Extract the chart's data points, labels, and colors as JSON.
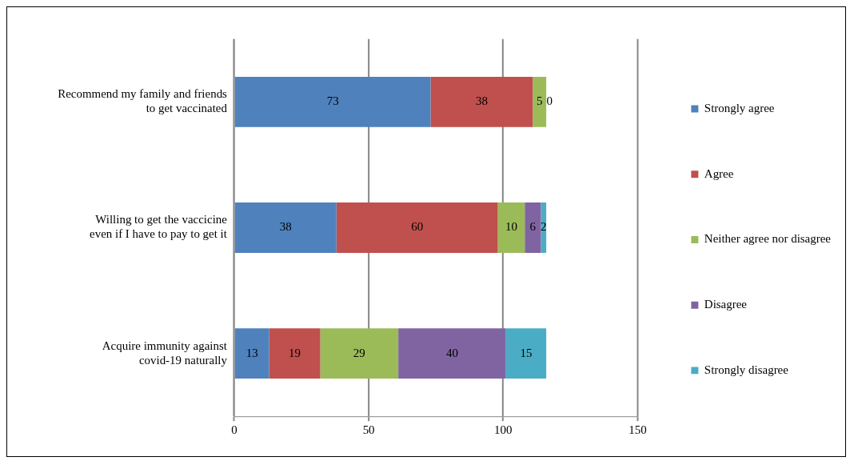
{
  "chart_data": {
    "type": "bar",
    "orientation": "horizontal",
    "stacked": true,
    "categories": [
      "Recommend my family and friends to get vaccinated",
      "Willing to get the vaccicine even if I have to pay to get it",
      "Acquire immunity against covid-19 naturally"
    ],
    "series": [
      {
        "name": "Strongly agree",
        "color": "#4f81bd",
        "values": [
          73,
          38,
          13
        ],
        "value_labels": [
          "73",
          "38",
          "13"
        ]
      },
      {
        "name": "Agree",
        "color": "#c0504d",
        "values": [
          38,
          60,
          19
        ],
        "value_labels": [
          "38",
          "60",
          "19"
        ]
      },
      {
        "name": "Neither agree nor disagree",
        "color": "#9bbb59",
        "values": [
          5,
          10,
          29
        ],
        "value_labels": [
          "5",
          "10",
          "29"
        ]
      },
      {
        "name": "Disagree",
        "color": "#8064a2",
        "values": [
          0,
          6,
          40
        ],
        "value_labels": [
          "0",
          "6",
          "40"
        ]
      },
      {
        "name": "Strongly disagree",
        "color": "#4bacc6",
        "values": [
          0,
          2,
          15
        ],
        "value_labels": [
          null,
          "2",
          "15"
        ]
      }
    ],
    "xlim": [
      0,
      150
    ],
    "xticks": [
      0,
      50,
      100,
      150
    ],
    "grid": "x",
    "legend": "right"
  }
}
